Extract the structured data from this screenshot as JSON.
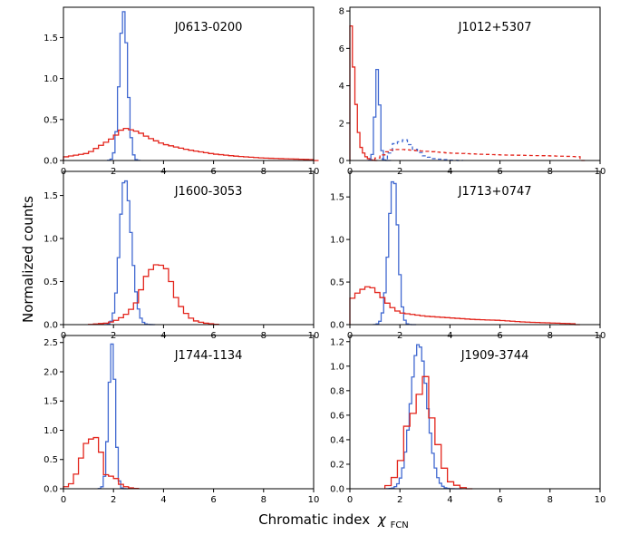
{
  "figure": {
    "xlabel": "Chromatic index",
    "xlabel_symbol": "χ",
    "xlabel_subscript": "FCN",
    "ylabel": "Normalized counts"
  },
  "colors": {
    "blue": "#4169d1",
    "red": "#e3241b",
    "axis": "#000000"
  },
  "chart_data": [
    {
      "type": "step-histogram",
      "title": "J0613-0200",
      "xlim": [
        0,
        10
      ],
      "ylim": [
        0,
        1.87
      ],
      "xticks": [
        0,
        2,
        4,
        6,
        8,
        10
      ],
      "yticks": [
        0.0,
        0.5,
        1.0,
        1.5
      ],
      "bin_width": 0.1,
      "series": [
        {
          "name": "blue",
          "color": "#4169d1",
          "dashed": false,
          "peak_x": 2.4,
          "peak_y": 1.82,
          "sigma_left": 0.16,
          "sigma_right": 0.16,
          "tail_end": 3.0
        },
        {
          "name": "red",
          "color": "#e3241b",
          "dashed": false,
          "bin_width": 0.2,
          "points": [
            [
              0,
              0.04
            ],
            [
              1,
              0.09
            ],
            [
              2,
              0.28
            ],
            [
              2.4,
              0.4
            ],
            [
              3,
              0.35
            ],
            [
              3.4,
              0.28
            ],
            [
              4,
              0.2
            ],
            [
              5,
              0.13
            ],
            [
              6,
              0.08
            ],
            [
              7,
              0.05
            ],
            [
              8,
              0.03
            ],
            [
              9,
              0.02
            ],
            [
              10,
              0.01
            ]
          ]
        }
      ]
    },
    {
      "type": "step-histogram",
      "title": "J1012+5307",
      "xlim": [
        0,
        10
      ],
      "ylim": [
        0,
        8.2
      ],
      "xticks": [
        0,
        2,
        4,
        6,
        8,
        10
      ],
      "yticks": [
        0,
        2,
        4,
        6,
        8
      ],
      "bin_width": 0.1,
      "series": [
        {
          "name": "red",
          "color": "#e3241b",
          "dashed": false,
          "points": [
            [
              0,
              8.2
            ],
            [
              0.05,
              7.2
            ],
            [
              0.15,
              5.0
            ],
            [
              0.25,
              3.0
            ],
            [
              0.35,
              1.5
            ],
            [
              0.45,
              0.7
            ],
            [
              0.6,
              0.25
            ],
            [
              0.8,
              0.05
            ],
            [
              1.0,
              0
            ]
          ]
        },
        {
          "name": "blue",
          "color": "#4169d1",
          "dashed": false,
          "peak_x": 1.1,
          "peak_y": 4.9,
          "sigma_left": 0.09,
          "sigma_right": 0.09,
          "tail_end": 1.6
        },
        {
          "name": "blue-dashed",
          "color": "#4169d1",
          "dashed": true,
          "bin_width": 0.2,
          "points": [
            [
              1.3,
              0
            ],
            [
              1.4,
              0.1
            ],
            [
              1.6,
              0.4
            ],
            [
              1.8,
              0.9
            ],
            [
              2.2,
              1.1
            ],
            [
              2.6,
              0.6
            ],
            [
              3.0,
              0.25
            ],
            [
              3.4,
              0.1
            ],
            [
              4.0,
              0.02
            ],
            [
              4.5,
              0
            ]
          ]
        },
        {
          "name": "red-dashed",
          "color": "#e3241b",
          "dashed": true,
          "bin_width": 0.2,
          "points": [
            [
              1.0,
              0.05
            ],
            [
              1.6,
              0.55
            ],
            [
              2.0,
              0.6
            ],
            [
              3.0,
              0.5
            ],
            [
              4.0,
              0.4
            ],
            [
              6.0,
              0.3
            ],
            [
              8.0,
              0.25
            ],
            [
              9.2,
              0.2
            ],
            [
              9.3,
              0
            ]
          ]
        }
      ]
    },
    {
      "type": "step-histogram",
      "title": "J1600-3053",
      "xlim": [
        0,
        10
      ],
      "ylim": [
        0,
        1.78
      ],
      "xticks": [
        0,
        2,
        4,
        6,
        8,
        10
      ],
      "yticks": [
        0.0,
        0.5,
        1.0,
        1.5
      ],
      "bin_width": 0.1,
      "series": [
        {
          "name": "blue",
          "color": "#4169d1",
          "dashed": false,
          "peak_x": 2.45,
          "peak_y": 1.7,
          "sigma_left": 0.2,
          "sigma_right": 0.26,
          "tail_end": 3.6
        },
        {
          "name": "red",
          "color": "#e3241b",
          "dashed": false,
          "bin_width": 0.2,
          "points": [
            [
              1.0,
              0
            ],
            [
              1.8,
              0.02
            ],
            [
              2.2,
              0.06
            ],
            [
              2.6,
              0.14
            ],
            [
              3.0,
              0.29
            ],
            [
              3.2,
              0.52
            ],
            [
              3.6,
              0.68
            ],
            [
              3.8,
              0.71
            ],
            [
              4.2,
              0.63
            ],
            [
              4.4,
              0.37
            ],
            [
              4.6,
              0.26
            ],
            [
              4.8,
              0.16
            ],
            [
              5.0,
              0.1
            ],
            [
              5.2,
              0.05
            ],
            [
              5.6,
              0.02
            ],
            [
              6.2,
              0
            ]
          ]
        }
      ]
    },
    {
      "type": "step-histogram",
      "title": "J1713+0747",
      "xlim": [
        0,
        10
      ],
      "ylim": [
        0,
        1.8
      ],
      "xticks": [
        0,
        2,
        4,
        6,
        8,
        10
      ],
      "yticks": [
        0.0,
        0.5,
        1.0,
        1.5
      ],
      "bin_width": 0.1,
      "series": [
        {
          "name": "blue",
          "color": "#4169d1",
          "dashed": false,
          "peak_x": 1.75,
          "peak_y": 1.73,
          "sigma_left": 0.2,
          "sigma_right": 0.17,
          "tail_end": 2.6
        },
        {
          "name": "red",
          "color": "#e3241b",
          "dashed": false,
          "bin_width": 0.2,
          "points": [
            [
              0,
              0.28
            ],
            [
              0.4,
              0.4
            ],
            [
              0.8,
              0.46
            ],
            [
              1.2,
              0.35
            ],
            [
              1.6,
              0.22
            ],
            [
              2,
              0.14
            ],
            [
              3,
              0.1
            ],
            [
              4,
              0.08
            ],
            [
              5,
              0.06
            ],
            [
              6,
              0.05
            ],
            [
              7,
              0.03
            ],
            [
              8,
              0.02
            ],
            [
              9,
              0.01
            ],
            [
              9.1,
              0
            ]
          ]
        }
      ]
    },
    {
      "type": "step-histogram",
      "title": "J1744-1134",
      "xlim": [
        0,
        10
      ],
      "ylim": [
        0,
        2.62
      ],
      "xticks": [
        0,
        2,
        4,
        6,
        8,
        10
      ],
      "yticks": [
        0.0,
        0.5,
        1.0,
        1.5,
        2.0,
        2.5
      ],
      "bin_width": 0.1,
      "series": [
        {
          "name": "blue",
          "color": "#4169d1",
          "dashed": false,
          "peak_x": 1.95,
          "peak_y": 2.48,
          "sigma_left": 0.14,
          "sigma_right": 0.12,
          "tail_end": 2.5
        },
        {
          "name": "red",
          "color": "#e3241b",
          "dashed": false,
          "bin_width": 0.2,
          "points": [
            [
              0,
              0
            ],
            [
              0.2,
              0.07
            ],
            [
              0.4,
              0.1
            ],
            [
              0.6,
              0.4
            ],
            [
              0.8,
              0.65
            ],
            [
              1.0,
              0.9
            ],
            [
              1.2,
              0.8
            ],
            [
              1.4,
              0.95
            ],
            [
              1.6,
              0.3
            ],
            [
              1.8,
              0.18
            ],
            [
              2.0,
              0.25
            ],
            [
              2.2,
              0.1
            ],
            [
              2.4,
              0.05
            ],
            [
              2.6,
              0.02
            ],
            [
              3.0,
              0
            ]
          ]
        }
      ]
    },
    {
      "type": "step-histogram",
      "title": "J1909-3744",
      "xlim": [
        0,
        10
      ],
      "ylim": [
        0,
        1.25
      ],
      "xticks": [
        0,
        2,
        4,
        6,
        8,
        10
      ],
      "yticks": [
        0.0,
        0.2,
        0.4,
        0.6,
        0.8,
        1.0,
        1.2
      ],
      "bin_width": 0.1,
      "series": [
        {
          "name": "blue",
          "color": "#4169d1",
          "dashed": false,
          "peak_x": 2.75,
          "peak_y": 1.18,
          "sigma_left": 0.32,
          "sigma_right": 0.34,
          "tail_end": 4.4
        },
        {
          "name": "red",
          "color": "#e3241b",
          "dashed": false,
          "bin_width": 0.25,
          "points": [
            [
              1.4,
              0
            ],
            [
              1.5,
              0.02
            ],
            [
              1.75,
              0.08
            ],
            [
              2.0,
              0.2
            ],
            [
              2.25,
              0.5
            ],
            [
              2.5,
              0.6
            ],
            [
              2.75,
              0.75
            ],
            [
              3.0,
              0.95
            ],
            [
              3.25,
              0.6
            ],
            [
              3.5,
              0.38
            ],
            [
              3.75,
              0.18
            ],
            [
              4.0,
              0.06
            ],
            [
              4.25,
              0.03
            ],
            [
              4.5,
              0.01
            ],
            [
              4.75,
              0
            ]
          ]
        }
      ]
    }
  ]
}
